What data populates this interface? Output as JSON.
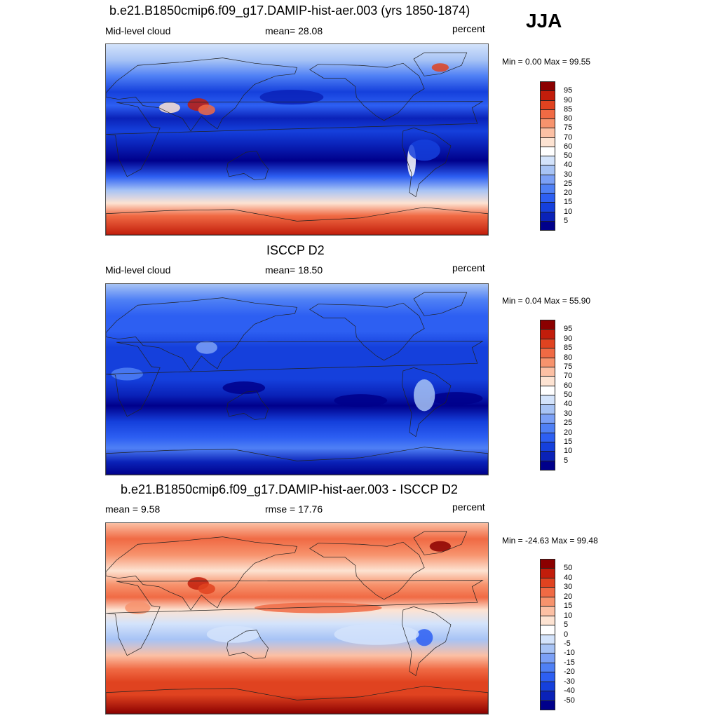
{
  "season": "JJA",
  "chart_data": [
    {
      "type": "heatmap",
      "title": "b.e21.B1850cmip6.f09_g17.DAMIP-hist-aer.003 (yrs 1850-1874)",
      "left_label": "Mid-level cloud",
      "center_label": "mean=  28.08",
      "right_label": "percent",
      "min_max": "Min =   0.00 Max =  99.55",
      "mean": 28.08,
      "min": 0.0,
      "max": 99.55,
      "levels": [
        "5",
        "10",
        "15",
        "20",
        "25",
        "30",
        "40",
        "50",
        "60",
        "70",
        "75",
        "80",
        "85",
        "90",
        "95"
      ],
      "colors": [
        "#00008b",
        "#0a22b8",
        "#1540dc",
        "#2d5ff2",
        "#4f80f5",
        "#7ba0f6",
        "#a7c3f5",
        "#d3e3fb",
        "#ffffff",
        "#fde3d2",
        "#fcc0a4",
        "#f7936d",
        "#f06a44",
        "#e04320",
        "#c21d0b",
        "#8b0000"
      ],
      "zones": [
        {
          "lat": 90,
          "level": 7
        },
        {
          "lat": 75,
          "level": 6
        },
        {
          "lat": 60,
          "level": 4
        },
        {
          "lat": 45,
          "level": 2
        },
        {
          "lat": 32,
          "level": 3
        },
        {
          "lat": 20,
          "level": 1
        },
        {
          "lat": 8,
          "level": 2
        },
        {
          "lat": -5,
          "level": 1
        },
        {
          "lat": -20,
          "level": 0
        },
        {
          "lat": -35,
          "level": 3
        },
        {
          "lat": -48,
          "level": 6
        },
        {
          "lat": -60,
          "level": 9
        },
        {
          "lat": -72,
          "level": 12
        },
        {
          "lat": -90,
          "level": 14
        }
      ]
    },
    {
      "type": "heatmap",
      "title": "ISCCP D2",
      "left_label": "Mid-level cloud",
      "center_label": "mean=  18.50",
      "right_label": "percent",
      "min_max": "Min =   0.04 Max =  55.90",
      "mean": 18.5,
      "min": 0.04,
      "max": 55.9,
      "levels": [
        "5",
        "10",
        "15",
        "20",
        "25",
        "30",
        "40",
        "50",
        "60",
        "70",
        "75",
        "80",
        "85",
        "90",
        "95"
      ],
      "colors": [
        "#00008b",
        "#0a22b8",
        "#1540dc",
        "#2d5ff2",
        "#4f80f5",
        "#7ba0f6",
        "#a7c3f5",
        "#d3e3fb",
        "#ffffff",
        "#fde3d2",
        "#fcc0a4",
        "#f7936d",
        "#f06a44",
        "#e04320",
        "#c21d0b",
        "#8b0000"
      ],
      "zones": [
        {
          "lat": 90,
          "level": 6
        },
        {
          "lat": 75,
          "level": 4
        },
        {
          "lat": 60,
          "level": 3
        },
        {
          "lat": 45,
          "level": 3
        },
        {
          "lat": 30,
          "level": 2
        },
        {
          "lat": 15,
          "level": 2
        },
        {
          "lat": 0,
          "level": 2
        },
        {
          "lat": -15,
          "level": 1
        },
        {
          "lat": -25,
          "level": 0
        },
        {
          "lat": -40,
          "level": 2
        },
        {
          "lat": -55,
          "level": 3
        },
        {
          "lat": -65,
          "level": 4
        },
        {
          "lat": -78,
          "level": 1
        },
        {
          "lat": -90,
          "level": 0
        }
      ]
    },
    {
      "type": "heatmap",
      "title": "b.e21.B1850cmip6.f09_g17.DAMIP-hist-aer.003 - ISCCP D2",
      "left_label": "mean =   9.58",
      "center_label": "rmse =  17.76",
      "right_label": "percent",
      "min_max": "Min = -24.63 Max =  99.48",
      "mean": 9.58,
      "rmse": 17.76,
      "min": -24.63,
      "max": 99.48,
      "levels": [
        "-50",
        "-40",
        "-30",
        "-20",
        "-15",
        "-10",
        "-5",
        "0",
        "5",
        "10",
        "15",
        "20",
        "30",
        "40",
        "50"
      ],
      "colors": [
        "#00008b",
        "#0a22b8",
        "#1540dc",
        "#2d5ff2",
        "#4f80f5",
        "#7ba0f6",
        "#a7c3f5",
        "#d3e3fb",
        "#ffffff",
        "#fde3d2",
        "#fcc0a4",
        "#f7936d",
        "#f06a44",
        "#e04320",
        "#c21d0b",
        "#8b0000"
      ],
      "zones": [
        {
          "lat": 90,
          "level": 10
        },
        {
          "lat": 75,
          "level": 12
        },
        {
          "lat": 60,
          "level": 11
        },
        {
          "lat": 45,
          "level": 9
        },
        {
          "lat": 32,
          "level": 11
        },
        {
          "lat": 20,
          "level": 12
        },
        {
          "lat": 8,
          "level": 9
        },
        {
          "lat": -5,
          "level": 7
        },
        {
          "lat": -20,
          "level": 6
        },
        {
          "lat": -35,
          "level": 10
        },
        {
          "lat": -48,
          "level": 12
        },
        {
          "lat": -60,
          "level": 13
        },
        {
          "lat": -72,
          "level": 13
        },
        {
          "lat": -90,
          "level": 15
        }
      ]
    }
  ]
}
